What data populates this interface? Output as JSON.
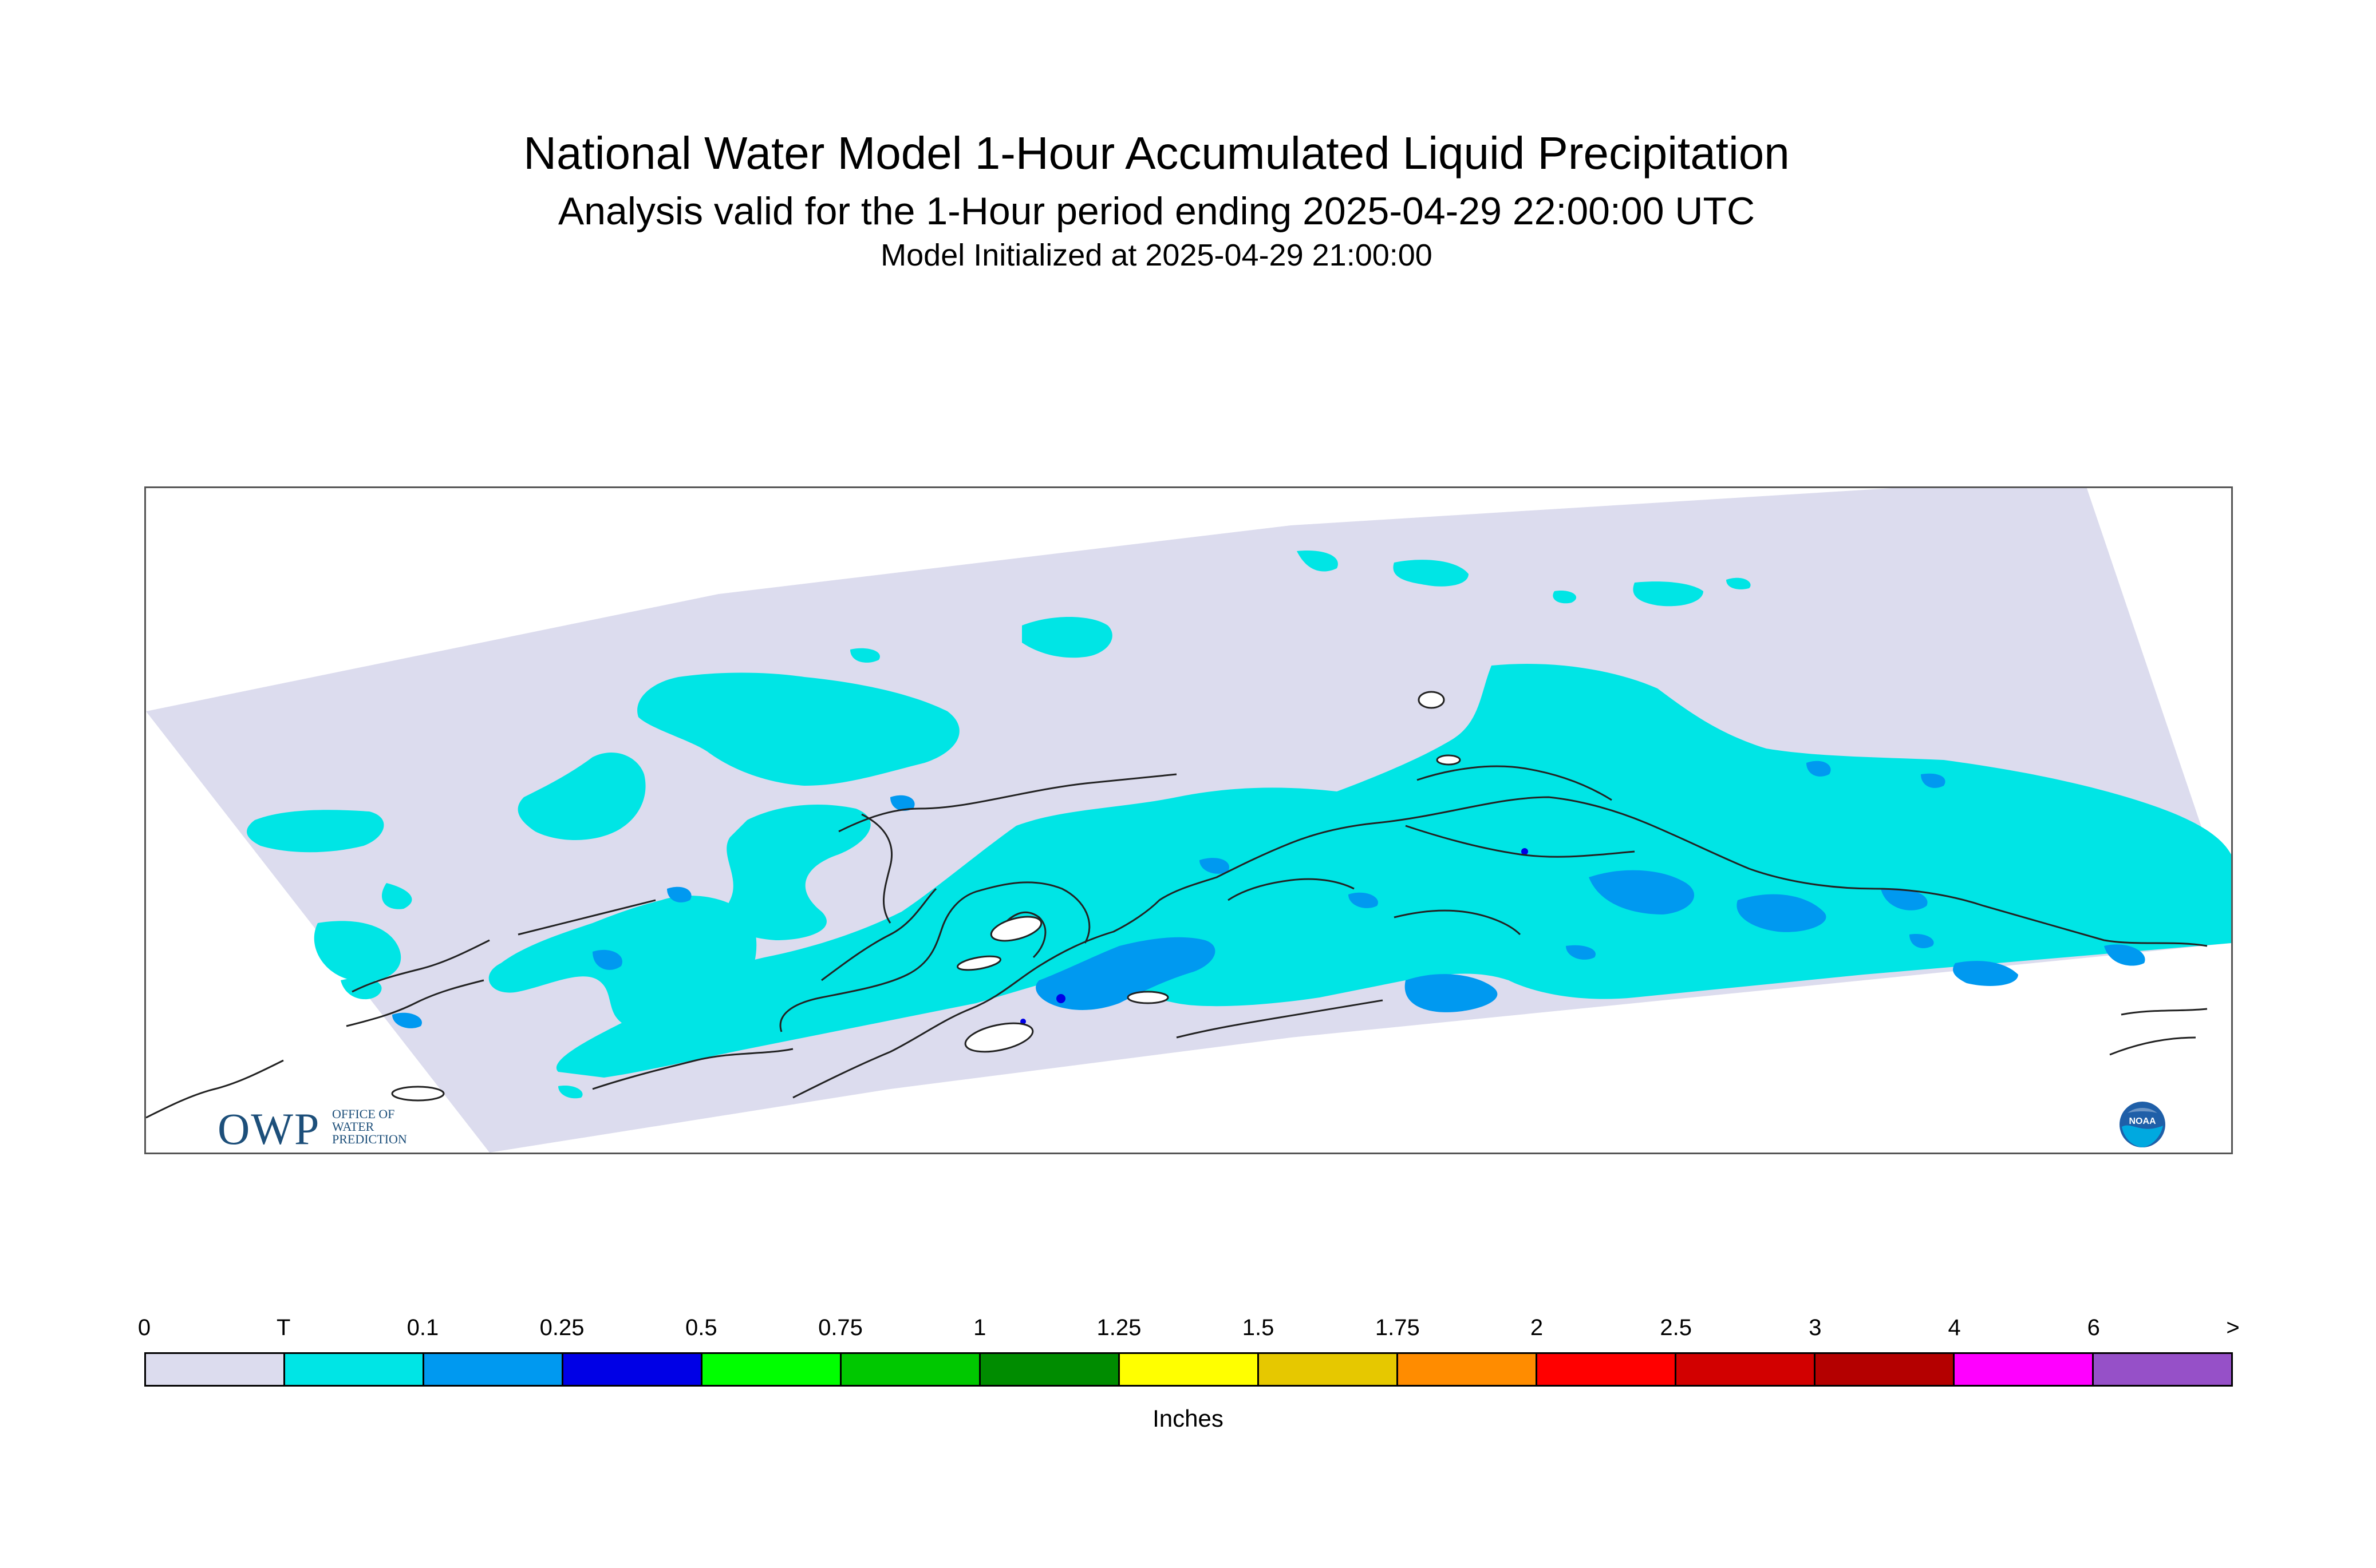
{
  "title": "National Water Model 1-Hour Accumulated Liquid Precipitation",
  "subtitle": "Analysis valid for the 1-Hour period ending 2025-04-29 22:00:00 UTC",
  "init_line": "Model Initialized at 2025-04-29 21:00:00",
  "colors": {
    "domain_background": "#dcdcee",
    "trace": "#00e5e5",
    "light": "#0099f0",
    "moderate": "#0000e6",
    "coastline": "#222222"
  },
  "legend": {
    "units": "Inches",
    "tick_labels": [
      "0",
      "T",
      "0.1",
      "0.25",
      "0.5",
      "0.75",
      "1",
      "1.25",
      "1.5",
      "1.75",
      "2",
      "2.5",
      "3",
      "4",
      "6",
      ">"
    ],
    "colors": [
      "#dcdcee",
      "#00e5e5",
      "#0099f0",
      "#0000e6",
      "#00ff00",
      "#00c800",
      "#008c00",
      "#ffff00",
      "#e6c800",
      "#ff8c00",
      "#ff0000",
      "#d20000",
      "#b40000",
      "#ff00ff",
      "#9650c8"
    ]
  },
  "logos": {
    "owp": {
      "letters": "OWP",
      "line1": "OFFICE OF",
      "line2": "WATER",
      "line3": "PREDICTION",
      "icon": "owp-logo"
    },
    "noaa": {
      "text": "NOAA",
      "icon": "noaa-logo"
    }
  }
}
